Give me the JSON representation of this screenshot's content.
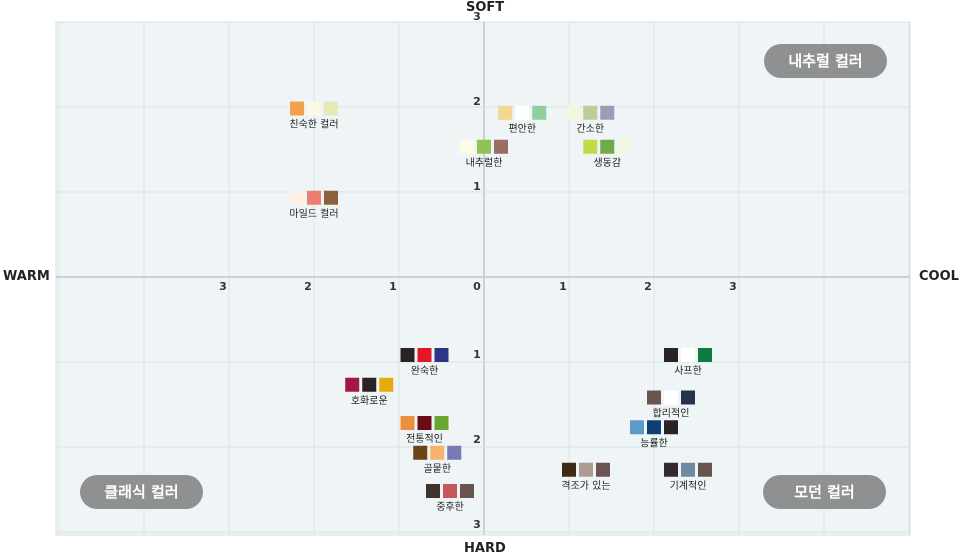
{
  "chart_data": {
    "type": "scatter",
    "title": "",
    "axes": {
      "top": "SOFT",
      "bottom": "HARD",
      "left": "WARM",
      "right": "COOL",
      "x_ticks_left": [
        "3",
        "2",
        "1"
      ],
      "x_ticks_right": [
        "1",
        "2",
        "3"
      ],
      "origin_label": "0",
      "y_ticks_up": [
        "1",
        "2",
        "3"
      ],
      "y_ticks_down": [
        "1",
        "2",
        "3"
      ],
      "xlim": [
        -5,
        5
      ],
      "ylim": [
        -3,
        3
      ],
      "grid": true
    },
    "quadrant_labels": {
      "top_right": "내추럴 컬러",
      "bottom_left": "클래식 컬러",
      "bottom_right": "모던 컬러"
    },
    "points": [
      {
        "label": "친숙한 컬러",
        "x": -2.0,
        "y": 1.9,
        "colors": [
          "#f3a04f",
          "#fdf8e6",
          "#e4ecb4"
        ]
      },
      {
        "label": "편안한",
        "x": 0.45,
        "y": 1.85,
        "colors": [
          "#f1d790",
          "#ffffff",
          "#8fcf9e"
        ]
      },
      {
        "label": "간소한",
        "x": 1.25,
        "y": 1.85,
        "colors": [
          "#f3f5dc",
          "#b9cf96",
          "#9d9bb8"
        ]
      },
      {
        "label": "내추럴한",
        "x": 0.0,
        "y": 1.45,
        "colors": [
          "#fdfbe6",
          "#91c257",
          "#9b6d63"
        ]
      },
      {
        "label": "생동감",
        "x": 1.45,
        "y": 1.45,
        "colors": [
          "#c2da4a",
          "#6eac49",
          "#f3f5e2"
        ]
      },
      {
        "label": "마일드 컬러",
        "x": -2.0,
        "y": 0.85,
        "colors": [
          "#fcf0e2",
          "#ee7d70",
          "#8d5f3b"
        ]
      },
      {
        "label": "완숙한",
        "x": -0.7,
        "y": -1.0,
        "colors": [
          "#2a2325",
          "#e51726",
          "#2a3686"
        ]
      },
      {
        "label": "호화로운",
        "x": -1.35,
        "y": -1.35,
        "colors": [
          "#a31742",
          "#2a2325",
          "#e5ac10"
        ]
      },
      {
        "label": "전통적인",
        "x": -0.7,
        "y": -1.8,
        "colors": [
          "#ec8f3c",
          "#6a0c17",
          "#6aa632"
        ]
      },
      {
        "label": "골뭍한",
        "x": -0.55,
        "y": -2.15,
        "colors": [
          "#6c4217",
          "#f7b36b",
          "#7a79b6"
        ]
      },
      {
        "label": "중후한",
        "x": -0.4,
        "y": -2.6,
        "colors": [
          "#3f3330",
          "#c6575b",
          "#68564e"
        ]
      },
      {
        "label": "사프한",
        "x": 2.4,
        "y": -1.0,
        "colors": [
          "#2a2325",
          "#ffffff",
          "#0d7a42"
        ]
      },
      {
        "label": "합리적인",
        "x": 2.2,
        "y": -1.5,
        "colors": [
          "#68564e",
          "#ffffff",
          "#24324a"
        ]
      },
      {
        "label": "능률한",
        "x": 2.0,
        "y": -1.85,
        "colors": [
          "#5b9bc5",
          "#0c4075",
          "#2a2325"
        ]
      },
      {
        "label": "격조가 있는",
        "x": 1.2,
        "y": -2.35,
        "colors": [
          "#3f2a15",
          "#ad9c91",
          "#6a5552"
        ]
      },
      {
        "label": "기계적인",
        "x": 2.4,
        "y": -2.35,
        "colors": [
          "#342b32",
          "#6f89a6",
          "#65554e"
        ]
      }
    ]
  }
}
